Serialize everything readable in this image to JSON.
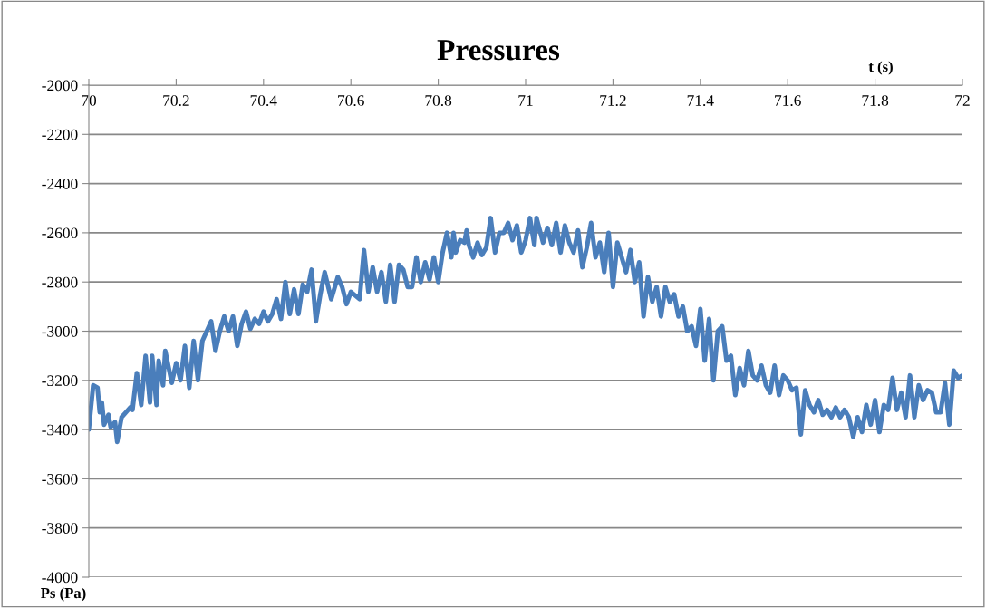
{
  "chart_data": {
    "type": "line",
    "title": "Pressures",
    "xlabel": "t (s)",
    "ylabel": "Ps (Pa)",
    "xlim": [
      70,
      72
    ],
    "xticks": [
      70,
      70.2,
      70.4,
      70.6,
      70.8,
      71,
      71.2,
      71.4,
      71.6,
      71.8,
      72
    ],
    "ylim": [
      -4000,
      -2000
    ],
    "yticks": [
      -4000,
      -3800,
      -3600,
      -3400,
      -3200,
      -3000,
      -2800,
      -2600,
      -2400,
      -2200,
      -2000
    ],
    "grid": "y",
    "marker": "none",
    "line_style": "solid",
    "series": [
      {
        "color": "#4a7ebb",
        "x": [
          70.0,
          70.01,
          70.02,
          70.025,
          70.03,
          70.035,
          70.045,
          70.05,
          70.06,
          70.065,
          70.075,
          70.085,
          70.095,
          70.1,
          70.11,
          70.12,
          70.13,
          70.14,
          70.145,
          70.155,
          70.16,
          70.17,
          70.175,
          70.19,
          70.2,
          70.21,
          70.22,
          70.23,
          70.24,
          70.25,
          70.26,
          70.27,
          70.28,
          70.29,
          70.3,
          70.31,
          70.32,
          70.33,
          70.34,
          70.35,
          70.36,
          70.37,
          70.38,
          70.39,
          70.4,
          70.41,
          70.42,
          70.43,
          70.44,
          70.45,
          70.46,
          70.47,
          70.48,
          70.49,
          70.5,
          70.51,
          70.52,
          70.53,
          70.54,
          70.555,
          70.57,
          70.58,
          70.59,
          70.6,
          70.62,
          70.63,
          70.64,
          70.65,
          70.66,
          70.67,
          70.68,
          70.69,
          70.7,
          70.71,
          70.72,
          70.73,
          70.74,
          70.75,
          70.76,
          70.77,
          70.78,
          70.79,
          70.8,
          70.81,
          70.82,
          70.83,
          70.835,
          70.84,
          70.85,
          70.86,
          70.865,
          70.87,
          70.88,
          70.89,
          70.9,
          70.91,
          70.92,
          70.93,
          70.94,
          70.95,
          70.96,
          70.97,
          70.98,
          70.99,
          71.0,
          71.01,
          71.02,
          71.025,
          71.04,
          71.05,
          71.06,
          71.07,
          71.08,
          71.09,
          71.1,
          71.11,
          71.12,
          71.13,
          71.14,
          71.15,
          71.16,
          71.17,
          71.18,
          71.19,
          71.2,
          71.21,
          71.22,
          71.23,
          71.24,
          71.25,
          71.26,
          71.27,
          71.28,
          71.29,
          71.3,
          71.31,
          71.32,
          71.33,
          71.34,
          71.35,
          71.36,
          71.37,
          71.38,
          71.39,
          71.4,
          71.41,
          71.42,
          71.43,
          71.44,
          71.45,
          71.46,
          71.47,
          71.48,
          71.49,
          71.5,
          71.51,
          71.52,
          71.53,
          71.54,
          71.55,
          71.56,
          71.57,
          71.58,
          71.59,
          71.6,
          71.61,
          71.62,
          71.63,
          71.64,
          71.65,
          71.66,
          71.67,
          71.68,
          71.69,
          71.7,
          71.71,
          71.72,
          71.73,
          71.74,
          71.75,
          71.76,
          71.77,
          71.78,
          71.79,
          71.8,
          71.81,
          71.82,
          71.83,
          71.84,
          71.85,
          71.86,
          71.87,
          71.88,
          71.89,
          71.9,
          71.91,
          71.92,
          71.93,
          71.94,
          71.95,
          71.96,
          71.97,
          71.98,
          71.99,
          72.0
        ],
        "values": [
          -3400,
          -3220,
          -3230,
          -3330,
          -3290,
          -3380,
          -3340,
          -3390,
          -3370,
          -3450,
          -3350,
          -3330,
          -3310,
          -3320,
          -3170,
          -3300,
          -3100,
          -3290,
          -3100,
          -3300,
          -3120,
          -3220,
          -3080,
          -3210,
          -3130,
          -3200,
          -3060,
          -3230,
          -3040,
          -3200,
          -3040,
          -3000,
          -2960,
          -3080,
          -3000,
          -2940,
          -3000,
          -2940,
          -3060,
          -2970,
          -2920,
          -2990,
          -2950,
          -2970,
          -2920,
          -2960,
          -2930,
          -2870,
          -2950,
          -2800,
          -2930,
          -2830,
          -2930,
          -2810,
          -2840,
          -2750,
          -2960,
          -2850,
          -2760,
          -2870,
          -2780,
          -2820,
          -2890,
          -2840,
          -2870,
          -2670,
          -2840,
          -2740,
          -2840,
          -2760,
          -2880,
          -2730,
          -2880,
          -2730,
          -2750,
          -2820,
          -2820,
          -2700,
          -2800,
          -2720,
          -2790,
          -2700,
          -2800,
          -2680,
          -2600,
          -2700,
          -2600,
          -2680,
          -2630,
          -2640,
          -2590,
          -2650,
          -2700,
          -2640,
          -2690,
          -2660,
          -2540,
          -2680,
          -2600,
          -2600,
          -2560,
          -2630,
          -2570,
          -2680,
          -2630,
          -2540,
          -2650,
          -2540,
          -2640,
          -2580,
          -2650,
          -2560,
          -2680,
          -2570,
          -2640,
          -2680,
          -2590,
          -2740,
          -2660,
          -2560,
          -2700,
          -2640,
          -2760,
          -2600,
          -2820,
          -2640,
          -2700,
          -2760,
          -2670,
          -2800,
          -2720,
          -2940,
          -2780,
          -2880,
          -2820,
          -2940,
          -2820,
          -2880,
          -2850,
          -2940,
          -2900,
          -3000,
          -2980,
          -3060,
          -2910,
          -3120,
          -2950,
          -3200,
          -3000,
          -2980,
          -3120,
          -3100,
          -3260,
          -3150,
          -3220,
          -3080,
          -3180,
          -3200,
          -3140,
          -3220,
          -3250,
          -3140,
          -3260,
          -3180,
          -3200,
          -3240,
          -3230,
          -3420,
          -3240,
          -3300,
          -3330,
          -3280,
          -3340,
          -3320,
          -3350,
          -3310,
          -3350,
          -3320,
          -3350,
          -3430,
          -3350,
          -3410,
          -3300,
          -3380,
          -3280,
          -3410,
          -3300,
          -3320,
          -3190,
          -3320,
          -3250,
          -3350,
          -3180,
          -3350,
          -3220,
          -3280,
          -3240,
          -3250,
          -3330,
          -3330,
          -3210,
          -3380,
          -3160,
          -3190,
          -3180
        ]
      }
    ]
  }
}
